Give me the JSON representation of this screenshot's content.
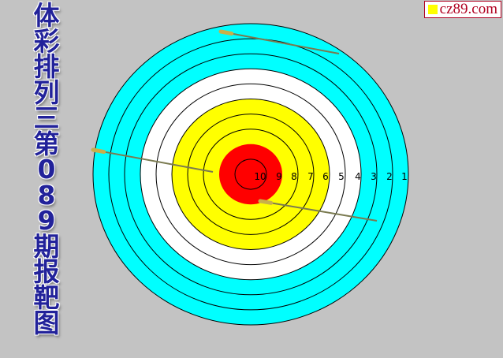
{
  "title_chars": [
    "体",
    "彩",
    "排",
    "列",
    "三",
    "第",
    "0",
    "8",
    "9",
    "期",
    "报",
    "靶",
    "图"
  ],
  "watermark": "cz89.com",
  "ring_labels": [
    "10",
    "9",
    "8",
    "7",
    "6",
    "5",
    "4",
    "3",
    "2",
    "1"
  ],
  "colors": {
    "background": "#c3c3c3",
    "outer": "#00ffff",
    "white": "#ffffff",
    "yellow": "#ffff00",
    "red": "#ff0000",
    "title": "#22229a"
  }
}
